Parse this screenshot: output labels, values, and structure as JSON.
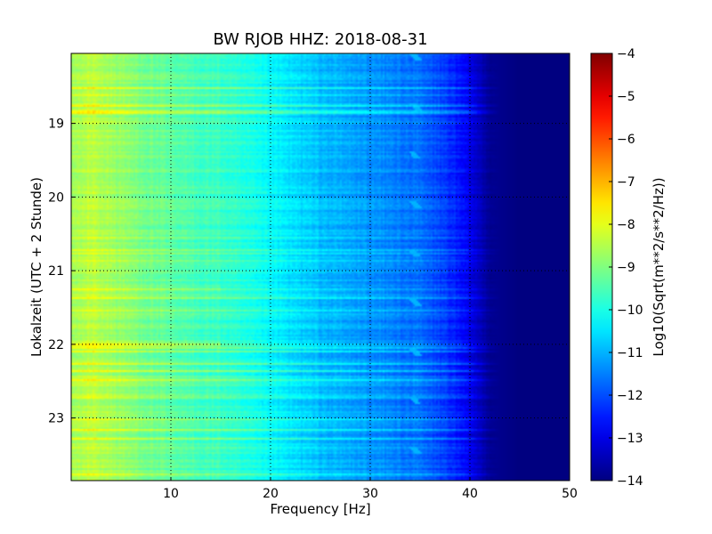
{
  "chart_data": {
    "type": "heatmap",
    "title": "BW RJOB HHZ: 2018-08-31",
    "xlabel": "Frequency [Hz]",
    "ylabel": "Lokalzeit (UTC + 2 Stunde)",
    "xlim": [
      0,
      50
    ],
    "ylim": [
      18.05,
      23.85
    ],
    "x_ticks": [
      10,
      20,
      30,
      40,
      50
    ],
    "y_ticks": [
      19,
      20,
      21,
      22,
      23
    ],
    "x_tick_labels": [
      "10",
      "20",
      "30",
      "40",
      "50"
    ],
    "y_tick_labels": [
      "19",
      "20",
      "21",
      "22",
      "23"
    ],
    "grid": true,
    "colormap": "jet",
    "colorbar": {
      "label": "Log10(Sqrt(m**2/s**2/Hz))",
      "range": [
        -14,
        -4
      ],
      "ticks": [
        -14,
        -13,
        -12,
        -11,
        -10,
        -9,
        -8,
        -7,
        -6,
        -5,
        -4
      ],
      "tick_labels": [
        "−14",
        "−13",
        "−12",
        "−11",
        "−10",
        "−9",
        "−8",
        "−7",
        "−6",
        "−5",
        "−4"
      ]
    },
    "spectral_profile": {
      "frequency_hz": [
        0,
        2,
        5,
        10,
        15,
        20,
        25,
        30,
        35,
        38,
        40,
        42,
        45,
        50
      ],
      "log_amplitude": [
        -8.7,
        -8.4,
        -8.8,
        -9.4,
        -9.7,
        -10.3,
        -10.9,
        -11.3,
        -11.7,
        -12.3,
        -13.0,
        -13.8,
        -14.0,
        -14.0
      ]
    },
    "tonal_line": {
      "frequency_hz": 34.5,
      "log_amplitude": -11.0
    },
    "broadband_noise_events": [
      {
        "time": 22.0,
        "log_amplitude_boost": 0.8
      },
      {
        "time": 21.25,
        "log_amplitude_boost": 0.4
      }
    ]
  }
}
